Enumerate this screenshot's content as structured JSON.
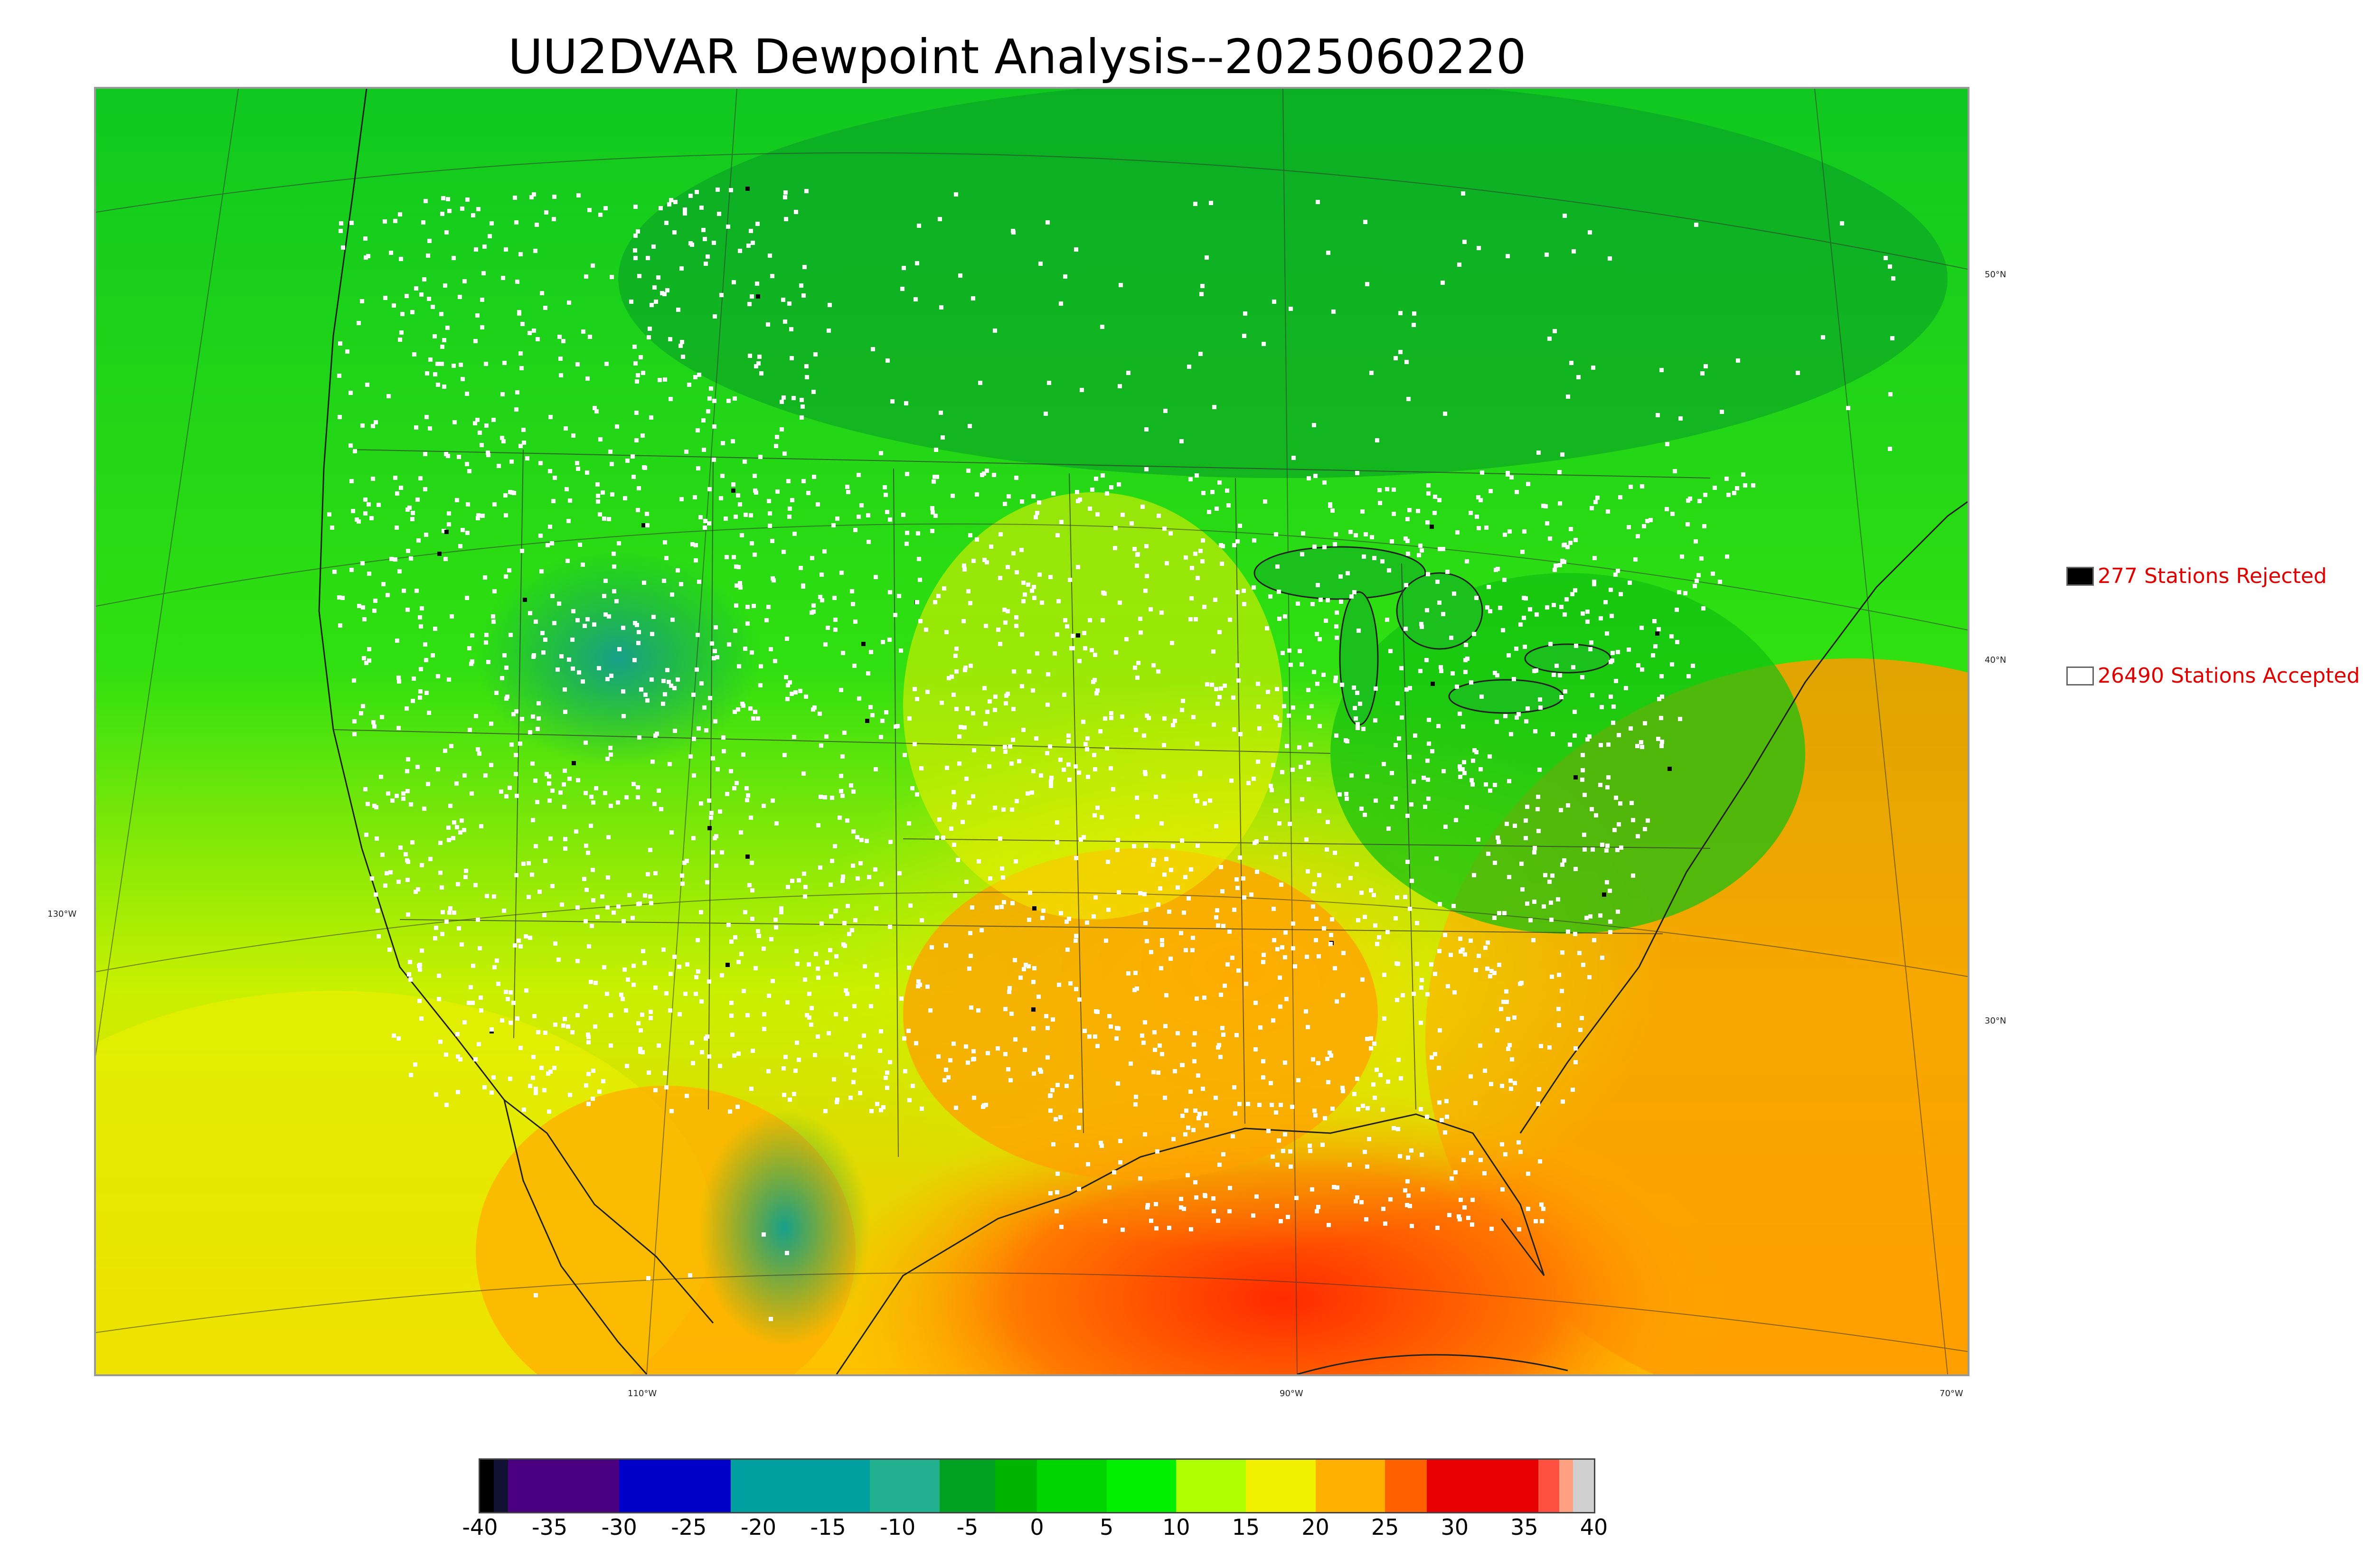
{
  "title": "UU2DVAR Dewpoint Analysis--2025060220",
  "map": {
    "lon_labels": [
      {
        "text": "110°W"
      },
      {
        "text": "90°W"
      },
      {
        "text": "70°W"
      },
      {
        "text": "130°W"
      }
    ],
    "lat_labels": [
      {
        "text": "50°N"
      },
      {
        "text": "40°N"
      },
      {
        "text": "30°N"
      }
    ]
  },
  "legend": {
    "rejected": {
      "label": "277 Stations Rejected",
      "color": "#000000"
    },
    "accepted": {
      "label": "26490 Stations Accepted",
      "color": "#ffffff"
    }
  },
  "colorbar": {
    "min": -40,
    "max": 40,
    "tick_labels": [
      "-40",
      "-35",
      "-30",
      "-25",
      "-20",
      "-15",
      "-10",
      "-5",
      "0",
      "5",
      "10",
      "15",
      "20",
      "25",
      "30",
      "35",
      "40"
    ],
    "stops": [
      {
        "from": -40,
        "to": -39,
        "color": "#000000"
      },
      {
        "from": -39,
        "to": -38,
        "color": "#111133"
      },
      {
        "from": -38,
        "to": -30,
        "color": "#4a0080"
      },
      {
        "from": -30,
        "to": -22,
        "color": "#0000c8"
      },
      {
        "from": -22,
        "to": -12,
        "color": "#00a0a0"
      },
      {
        "from": -12,
        "to": -7,
        "color": "#20b090"
      },
      {
        "from": -7,
        "to": -3,
        "color": "#00a020"
      },
      {
        "from": -3,
        "to": 0,
        "color": "#00b400"
      },
      {
        "from": 0,
        "to": 5,
        "color": "#00d400"
      },
      {
        "from": 5,
        "to": 10,
        "color": "#00f000"
      },
      {
        "from": 10,
        "to": 15,
        "color": "#b0ff00"
      },
      {
        "from": 15,
        "to": 20,
        "color": "#f0f000"
      },
      {
        "from": 20,
        "to": 25,
        "color": "#ffb000"
      },
      {
        "from": 25,
        "to": 28,
        "color": "#ff6000"
      },
      {
        "from": 28,
        "to": 36,
        "color": "#e80000"
      },
      {
        "from": 36,
        "to": 37.5,
        "color": "#ff5040"
      },
      {
        "from": 37.5,
        "to": 38.5,
        "color": "#ffa080"
      },
      {
        "from": 38.5,
        "to": 40,
        "color": "#d0d0d0"
      }
    ]
  }
}
